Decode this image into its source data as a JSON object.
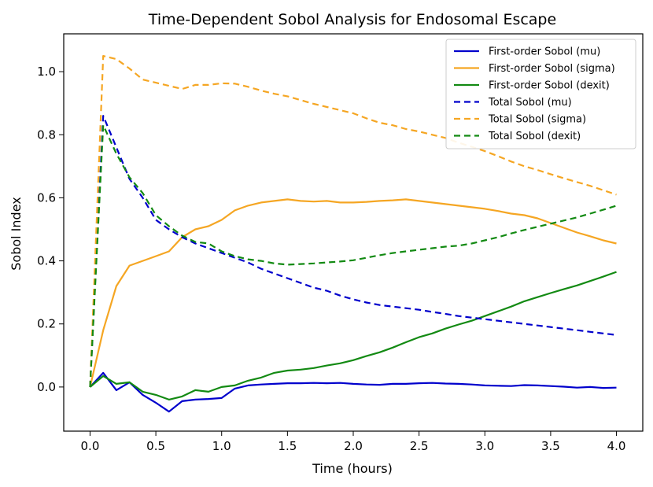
{
  "chart_data": {
    "type": "line",
    "title": "Time-Dependent Sobol Analysis for Endosomal Escape",
    "xlabel": "Time (hours)",
    "ylabel": "Sobol Index",
    "xlim": [
      -0.2,
      4.2
    ],
    "ylim": [
      -0.14,
      1.12
    ],
    "xticks": [
      0.0,
      0.5,
      1.0,
      1.5,
      2.0,
      2.5,
      3.0,
      3.5,
      4.0
    ],
    "xtick_labels": [
      "0.0",
      "0.5",
      "1.0",
      "1.5",
      "2.0",
      "2.5",
      "3.0",
      "3.5",
      "4.0"
    ],
    "yticks": [
      0.0,
      0.2,
      0.4,
      0.6,
      0.8,
      1.0
    ],
    "ytick_labels": [
      "0.0",
      "0.2",
      "0.4",
      "0.6",
      "0.8",
      "1.0"
    ],
    "grid": false,
    "legend_position": "top-right",
    "x": [
      0.0,
      0.1,
      0.2,
      0.3,
      0.4,
      0.5,
      0.6,
      0.7,
      0.8,
      0.9,
      1.0,
      1.1,
      1.2,
      1.3,
      1.4,
      1.5,
      1.6,
      1.7,
      1.8,
      1.9,
      2.0,
      2.1,
      2.2,
      2.3,
      2.4,
      2.5,
      2.6,
      2.7,
      2.8,
      2.9,
      3.0,
      3.1,
      3.2,
      3.3,
      3.4,
      3.5,
      3.6,
      3.7,
      3.8,
      3.9,
      4.0
    ],
    "series": [
      {
        "name": "First-order Sobol (mu)",
        "color": "#0000cc",
        "dash": "solid",
        "values": [
          0.0,
          0.045,
          -0.01,
          0.015,
          -0.025,
          -0.05,
          -0.078,
          -0.045,
          -0.04,
          -0.038,
          -0.035,
          -0.005,
          0.005,
          0.008,
          0.01,
          0.012,
          0.012,
          0.013,
          0.012,
          0.013,
          0.01,
          0.008,
          0.007,
          0.01,
          0.01,
          0.012,
          0.013,
          0.011,
          0.01,
          0.008,
          0.005,
          0.004,
          0.003,
          0.006,
          0.005,
          0.003,
          0.001,
          -0.002,
          0.0,
          -0.003,
          -0.002
        ]
      },
      {
        "name": "First-order Sobol (sigma)",
        "color": "#f5a623",
        "dash": "solid",
        "values": [
          0.0,
          0.18,
          0.32,
          0.385,
          0.4,
          0.415,
          0.43,
          0.475,
          0.5,
          0.51,
          0.53,
          0.56,
          0.575,
          0.585,
          0.59,
          0.595,
          0.59,
          0.588,
          0.59,
          0.585,
          0.585,
          0.587,
          0.59,
          0.592,
          0.595,
          0.59,
          0.585,
          0.58,
          0.575,
          0.57,
          0.565,
          0.558,
          0.55,
          0.545,
          0.535,
          0.52,
          0.505,
          0.49,
          0.478,
          0.465,
          0.455
        ]
      },
      {
        "name": "First-order Sobol (dexit)",
        "color": "#138a13",
        "dash": "solid",
        "values": [
          0.0,
          0.035,
          0.01,
          0.015,
          -0.015,
          -0.025,
          -0.04,
          -0.03,
          -0.01,
          -0.015,
          0.0,
          0.005,
          0.02,
          0.03,
          0.045,
          0.052,
          0.055,
          0.06,
          0.068,
          0.075,
          0.085,
          0.098,
          0.11,
          0.125,
          0.142,
          0.158,
          0.17,
          0.185,
          0.198,
          0.21,
          0.225,
          0.24,
          0.255,
          0.272,
          0.285,
          0.298,
          0.31,
          0.322,
          0.336,
          0.35,
          0.365
        ]
      },
      {
        "name": "Total Sobol (mu)",
        "color": "#0000cc",
        "dash": "dashed",
        "values": [
          0.0,
          0.86,
          0.76,
          0.66,
          0.6,
          0.53,
          0.5,
          0.475,
          0.455,
          0.44,
          0.425,
          0.41,
          0.395,
          0.375,
          0.36,
          0.345,
          0.33,
          0.315,
          0.305,
          0.29,
          0.278,
          0.268,
          0.26,
          0.255,
          0.25,
          0.245,
          0.238,
          0.232,
          0.225,
          0.22,
          0.215,
          0.21,
          0.205,
          0.2,
          0.195,
          0.19,
          0.185,
          0.18,
          0.175,
          0.17,
          0.165
        ]
      },
      {
        "name": "Total Sobol (sigma)",
        "color": "#f5a623",
        "dash": "dashed",
        "values": [
          0.0,
          1.05,
          1.04,
          1.01,
          0.975,
          0.965,
          0.955,
          0.945,
          0.958,
          0.958,
          0.963,
          0.962,
          0.952,
          0.94,
          0.93,
          0.922,
          0.91,
          0.898,
          0.888,
          0.878,
          0.868,
          0.852,
          0.838,
          0.83,
          0.818,
          0.81,
          0.8,
          0.79,
          0.775,
          0.762,
          0.748,
          0.732,
          0.715,
          0.7,
          0.688,
          0.675,
          0.662,
          0.65,
          0.638,
          0.624,
          0.61
        ]
      },
      {
        "name": "Total Sobol (dexit)",
        "color": "#138a13",
        "dash": "dashed",
        "values": [
          0.0,
          0.83,
          0.74,
          0.665,
          0.615,
          0.545,
          0.51,
          0.48,
          0.46,
          0.455,
          0.43,
          0.415,
          0.405,
          0.4,
          0.392,
          0.388,
          0.39,
          0.392,
          0.395,
          0.398,
          0.402,
          0.41,
          0.418,
          0.425,
          0.43,
          0.435,
          0.44,
          0.445,
          0.448,
          0.455,
          0.465,
          0.475,
          0.487,
          0.498,
          0.508,
          0.518,
          0.528,
          0.538,
          0.55,
          0.562,
          0.575
        ]
      }
    ]
  }
}
